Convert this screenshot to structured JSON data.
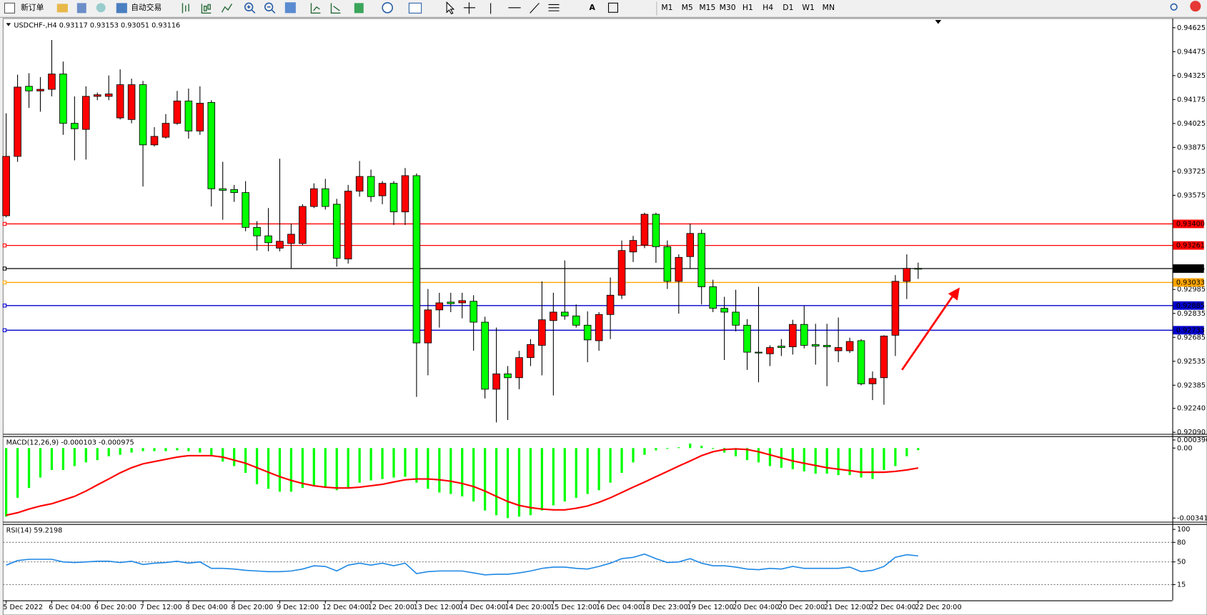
{
  "toolbar": {
    "new_order": "新订单",
    "auto_trading": "自动交易",
    "timeframes": [
      "M1",
      "M5",
      "M15",
      "M30",
      "H1",
      "H4",
      "D1",
      "W1",
      "MN"
    ]
  },
  "chart_data": [
    {
      "type": "candlestick",
      "title": "USDCHF-,H4  0.93117 0.93153 0.93051 0.93116",
      "categories": [
        "5 Dec 2022",
        null,
        null,
        null,
        "6 Dec 04:00",
        null,
        null,
        null,
        "6 Dec 20:00",
        null,
        null,
        null,
        "7 Dec 12:00",
        null,
        null,
        null,
        "8 Dec 04:00",
        null,
        null,
        null,
        "8 Dec 20:00",
        null,
        null,
        null,
        "9 Dec 12:00",
        null,
        null,
        null,
        "12 Dec 04:00",
        null,
        null,
        null,
        "12 Dec 20:00",
        null,
        null,
        null,
        "13 Dec 12:00",
        null,
        null,
        null,
        "14 Dec 04:00",
        null,
        null,
        null,
        "14 Dec 20:00",
        null,
        null,
        null,
        "15 Dec 12:00",
        null,
        null,
        null,
        "16 Dec 04:00",
        null,
        null,
        null,
        "18 Dec 23:00",
        null,
        null,
        null,
        "19 Dec 12:00",
        null,
        null,
        null,
        "20 Dec 04:00",
        null,
        null,
        null,
        "20 Dec 20:00",
        null,
        null,
        null,
        "21 Dec 12:00",
        null,
        null,
        null,
        "22 Dec 04:00",
        null,
        null,
        null,
        "22 Dec 20:00"
      ],
      "open": [
        0.93447,
        0.93819,
        0.94258,
        0.94229,
        0.94239,
        0.94335,
        0.94026,
        0.93988,
        0.94195,
        0.94195,
        0.9406,
        0.9405,
        0.94268,
        0.93891,
        0.93939,
        0.94026,
        0.94166,
        0.93978,
        0.94157,
        0.93616,
        0.93611,
        0.93592,
        0.93374,
        0.93321,
        0.93244,
        0.93273,
        0.93273,
        0.93505,
        0.93616,
        0.93519,
        0.93176,
        0.93601,
        0.93693,
        0.93572,
        0.9365,
        0.93471,
        0.93698,
        0.9265,
        0.92857,
        0.92906,
        0.92901,
        0.92911,
        0.9278,
        0.9236,
        0.92456,
        0.92432,
        0.92558,
        0.92635,
        0.9279,
        0.92843,
        0.92819,
        0.92761,
        0.92664,
        0.92828,
        0.92949,
        0.9322,
        0.93263,
        0.93456,
        0.93253,
        0.93036,
        0.93191,
        0.93336,
        0.93002,
        0.92867,
        0.92843,
        0.92761,
        0.92592,
        0.92582,
        0.9263,
        0.92626,
        0.92766,
        0.9264,
        0.92635,
        0.92601,
        0.92601,
        0.92664,
        0.92394,
        0.92432,
        0.92698,
        0.93036,
        0.93117
      ],
      "high": [
        0.94089,
        0.94331,
        0.9434,
        0.94316,
        0.94548,
        0.94413,
        0.94195,
        0.94258,
        0.94219,
        0.94326,
        0.94364,
        0.94306,
        0.94292,
        0.94002,
        0.94084,
        0.94229,
        0.94244,
        0.94258,
        0.94171,
        0.93785,
        0.9364,
        0.93664,
        0.93413,
        0.93495,
        0.93804,
        0.93398,
        0.93519,
        0.9365,
        0.93678,
        0.93553,
        0.9364,
        0.9379,
        0.93736,
        0.93664,
        0.93664,
        0.93746,
        0.93712,
        0.92988,
        0.92964,
        0.92964,
        0.92964,
        0.92949,
        0.92814,
        0.92746,
        0.92505,
        0.92601,
        0.92674,
        0.93036,
        0.92964,
        0.93167,
        0.92891,
        0.92848,
        0.92843,
        0.9306,
        0.93292,
        0.93321,
        0.93466,
        0.93466,
        0.93292,
        0.93205,
        0.93398,
        0.9336,
        0.93046,
        0.92939,
        0.92983,
        0.92799,
        0.93002,
        0.92635,
        0.92674,
        0.92795,
        0.92882,
        0.9277,
        0.9277,
        0.92809,
        0.92683,
        0.92674,
        0.92471,
        0.92698,
        0.93075,
        0.93205,
        0.93153
      ],
      "low": [
        0.93437,
        0.93785,
        0.94123,
        0.94099,
        0.94195,
        0.93954,
        0.93794,
        0.93799,
        0.94171,
        0.94171,
        0.9405,
        0.94026,
        0.9363,
        0.93881,
        0.9393,
        0.94017,
        0.9393,
        0.93954,
        0.93505,
        0.93422,
        0.93534,
        0.9335,
        0.93229,
        0.93224,
        0.93224,
        0.93118,
        0.93263,
        0.93495,
        0.93485,
        0.93128,
        0.93147,
        0.93567,
        0.93534,
        0.93519,
        0.93389,
        0.93389,
        0.92312,
        0.92447,
        0.92746,
        0.92843,
        0.92804,
        0.92601,
        0.92302,
        0.92152,
        0.92167,
        0.9236,
        0.92505,
        0.92447,
        0.92321,
        0.92795,
        0.92746,
        0.92529,
        0.92601,
        0.92674,
        0.92925,
        0.93157,
        0.93244,
        0.93152,
        0.92988,
        0.92833,
        0.93118,
        0.92891,
        0.92843,
        0.92543,
        0.92722,
        0.92481,
        0.92403,
        0.92505,
        0.92568,
        0.92577,
        0.92616,
        0.92514,
        0.92379,
        0.92529,
        0.92587,
        0.92384,
        0.92292,
        0.92263,
        0.92568,
        0.92925,
        0.93051
      ],
      "close": [
        0.93819,
        0.94253,
        0.94229,
        0.94239,
        0.94335,
        0.94026,
        0.93992,
        0.94195,
        0.94205,
        0.9421,
        0.94268,
        0.94268,
        0.93891,
        0.93944,
        0.94026,
        0.94166,
        0.93978,
        0.94152,
        0.93616,
        0.93606,
        0.93592,
        0.93374,
        0.93321,
        0.93278,
        0.93287,
        0.93331,
        0.93505,
        0.93616,
        0.93505,
        0.93181,
        0.93601,
        0.93693,
        0.93567,
        0.9365,
        0.93471,
        0.93698,
        0.9265,
        0.92857,
        0.92901,
        0.92896,
        0.92915,
        0.9278,
        0.9236,
        0.92456,
        0.92432,
        0.92558,
        0.9264,
        0.92795,
        0.92843,
        0.92819,
        0.92761,
        0.92669,
        0.92828,
        0.92949,
        0.93229,
        0.93292,
        0.93456,
        0.93253,
        0.93036,
        0.93186,
        0.93336,
        0.93002,
        0.92867,
        0.92843,
        0.92761,
        0.92592,
        0.92587,
        0.92621,
        0.92621,
        0.92766,
        0.92635,
        0.9263,
        0.92626,
        0.92621,
        0.92659,
        0.92394,
        0.92427,
        0.92693,
        0.93036,
        0.93117,
        0.93116
      ],
      "up_color": "#ff0000",
      "down_color": "#00ff00",
      "ylim": [
        0.9208,
        0.94678
      ],
      "yticks": [
        0.94625,
        0.94475,
        0.94325,
        0.94175,
        0.94025,
        0.93875,
        0.93725,
        0.93575,
        0.92985,
        0.92835,
        0.92685,
        0.92535,
        0.92385,
        {
          "value": 0.9224,
          "label": "0.92240"
        },
        {
          "value": 0.9209,
          "label": "0.92090"
        }
      ],
      "levels": [
        {
          "value": 0.934,
          "label": "0.93400",
          "color": "#ff0000"
        },
        {
          "value": 0.93261,
          "label": "0.93261",
          "color": "#ff0000"
        },
        {
          "value": 0.93116,
          "label": "0.93116",
          "color": "#000000"
        },
        {
          "value": 0.93033,
          "label": "0.93033",
          "color": "#ffa500"
        },
        {
          "value": 0.92885,
          "label": "0.92885",
          "color": "#0000cc"
        },
        {
          "value": 0.92733,
          "label": "0.92733",
          "color": "#0000cc"
        }
      ]
    },
    {
      "type": "macd",
      "title": "MACD(12,26,9) -0.000103 -0.000975",
      "series": [
        {
          "kind": "bar",
          "color": "#00ff00",
          "values": [
            -0.00335,
            -0.00243,
            -0.00195,
            -0.00144,
            -0.00107,
            -0.00107,
            -0.00088,
            -0.0007,
            -0.00059,
            -0.0004,
            -0.00033,
            -0.00022,
            -0.00015,
            -0.00015,
            -0.00015,
            -0.00011,
            -0.00015,
            -0.00022,
            -0.0004,
            -0.00066,
            -0.00088,
            -0.00121,
            -0.00177,
            -0.00199,
            -0.00213,
            -0.00213,
            -0.00195,
            -0.00188,
            -0.00188,
            -0.00206,
            -0.00199,
            -0.00169,
            -0.00158,
            -0.00151,
            -0.00144,
            -0.0014,
            -0.00169,
            -0.00199,
            -0.00217,
            -0.00224,
            -0.00236,
            -0.00261,
            -0.00305,
            -0.00328,
            -0.00342,
            -0.00335,
            -0.00328,
            -0.00305,
            -0.0028,
            -0.00261,
            -0.00243,
            -0.00224,
            -0.00206,
            -0.00169,
            -0.00121,
            -0.0007,
            -0.00033,
            -0.00011,
            -4e-05,
            4e-05,
            0.00022,
            0.00011,
            -4e-05,
            -0.00022,
            -0.0004,
            -0.00059,
            -0.0007,
            -0.00088,
            -0.00096,
            -0.00103,
            -0.00114,
            -0.00125,
            -0.00125,
            -0.00132,
            -0.00132,
            -0.00144,
            -0.00151,
            -0.00107,
            -0.00088,
            -0.0004,
            -0.000103
          ]
        },
        {
          "kind": "line",
          "color": "#ff0000",
          "values": [
            -0.00328,
            -0.00316,
            -0.00298,
            -0.00283,
            -0.00272,
            -0.00254,
            -0.00236,
            -0.0021,
            -0.0018,
            -0.00151,
            -0.00121,
            -0.00096,
            -0.00077,
            -0.00066,
            -0.00055,
            -0.00044,
            -0.00037,
            -0.00037,
            -0.00037,
            -0.00044,
            -0.00059,
            -0.00074,
            -0.00096,
            -0.00118,
            -0.0014,
            -0.00158,
            -0.00173,
            -0.00184,
            -0.00191,
            -0.00195,
            -0.00195,
            -0.00191,
            -0.00184,
            -0.00177,
            -0.00166,
            -0.00155,
            -0.00151,
            -0.00151,
            -0.00155,
            -0.00162,
            -0.00173,
            -0.00188,
            -0.0021,
            -0.00236,
            -0.00261,
            -0.0028,
            -0.00291,
            -0.00298,
            -0.00302,
            -0.00302,
            -0.00294,
            -0.00283,
            -0.00265,
            -0.00243,
            -0.00217,
            -0.00191,
            -0.00166,
            -0.0014,
            -0.00114,
            -0.00088,
            -0.00063,
            -0.00037,
            -0.00018,
            -7e-05,
            -4e-05,
            -7e-05,
            -0.00018,
            -0.00033,
            -0.00048,
            -0.00063,
            -0.00074,
            -0.00085,
            -0.00096,
            -0.00103,
            -0.0011,
            -0.00118,
            -0.00118,
            -0.00118,
            -0.00114,
            -0.00107,
            -0.000975
          ]
        }
      ],
      "ylim": [
        -0.0036,
        0.00058
      ],
      "yticks": [
        0.000396,
        {
          "value": 0,
          "label": "0.00"
        },
        -0.003419
      ]
    },
    {
      "type": "line",
      "title": "RSI(14) 59.2198",
      "series": [
        {
          "color": "#1e88e5",
          "values": [
            45,
            52,
            54,
            54,
            54,
            50,
            49,
            50,
            51,
            51,
            49,
            51,
            46,
            48,
            49,
            51,
            48,
            50,
            40,
            40,
            39,
            37,
            36,
            35,
            35,
            36,
            39,
            44,
            43,
            36,
            45,
            48,
            45,
            48,
            44,
            48,
            32,
            35,
            36,
            36,
            36,
            33,
            30,
            31,
            31,
            33,
            36,
            40,
            42,
            42,
            40,
            39,
            43,
            48,
            55,
            57,
            62,
            55,
            49,
            50,
            55,
            48,
            44,
            44,
            42,
            39,
            38,
            40,
            39,
            43,
            40,
            40,
            40,
            40,
            42,
            35,
            37,
            43,
            57,
            61,
            59.2198
          ]
        }
      ],
      "ylim": [
        -8,
        107
      ],
      "yticks": [
        100,
        80,
        50,
        15
      ],
      "levels": [
        80,
        50,
        15
      ]
    }
  ]
}
